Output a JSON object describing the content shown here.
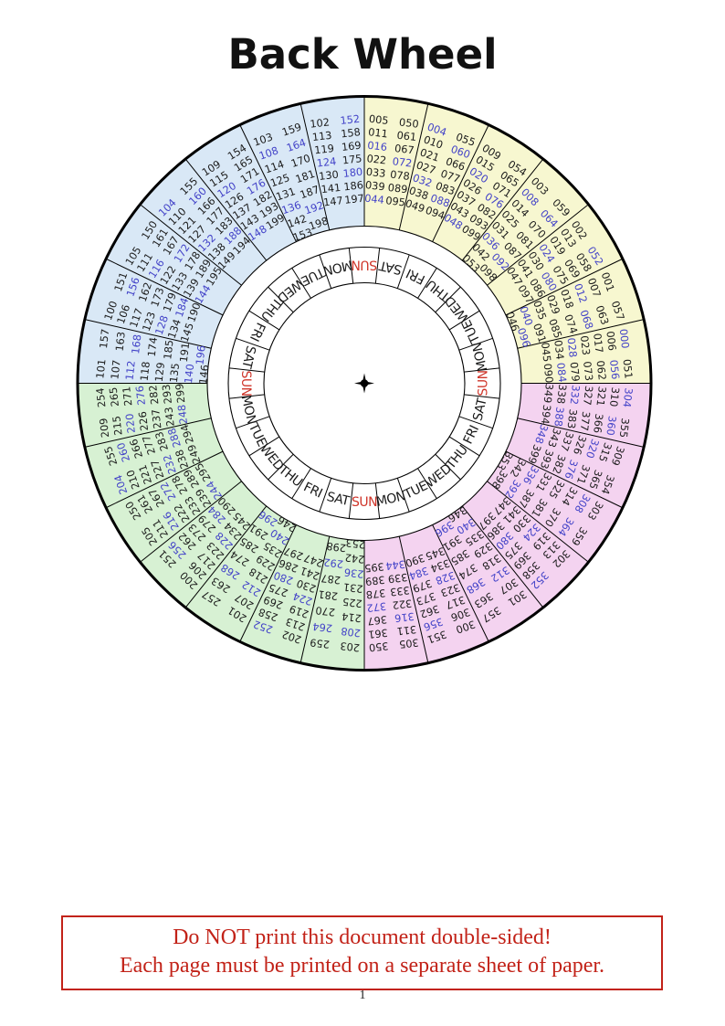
{
  "page": {
    "title": "Back Wheel",
    "page_number": "1"
  },
  "warning": {
    "line1": "Do NOT print this document double-sided!",
    "line2": "Each page must be printed on a separate sheet of paper.",
    "color": "#c22218"
  },
  "wheel": {
    "colors": {
      "yellow": "#f7f7d0",
      "pink": "#f4d3f0",
      "green": "#d7f1d3",
      "blue": "#d9e8f6",
      "number": "#1c1c1c",
      "leap_year": "#4343c8",
      "sunday": "#cf352a",
      "weekday": "#1a1a1a",
      "line": "#000000"
    },
    "day_ring_clockwise_from_top": [
      "SUN",
      "SAT",
      "FRI",
      "THU",
      "WED",
      "TUE",
      "MON",
      "SUN",
      "SAT",
      "FRI",
      "THU",
      "WED",
      "TUE",
      "MON",
      "SUN",
      "SAT",
      "FRI",
      "THU",
      "WED",
      "TUE",
      "MON",
      "SUN",
      "SAT",
      "FRI",
      "THU",
      "WED",
      "TUE",
      "MON"
    ],
    "sectors_clockwise_from_top": [
      {
        "quadrant": "yellow",
        "numbers": [
          "005",
          "011",
          "016",
          "022",
          "033",
          "039",
          "044",
          "050",
          "061",
          "067",
          "072",
          "078",
          "089",
          "095"
        ]
      },
      {
        "quadrant": "yellow",
        "numbers": [
          "004",
          "010",
          "021",
          "027",
          "032",
          "038",
          "049",
          "055",
          "060",
          "066",
          "077",
          "083",
          "088",
          "094"
        ]
      },
      {
        "quadrant": "yellow",
        "numbers": [
          "009",
          "015",
          "020",
          "026",
          "037",
          "043",
          "048",
          "054",
          "065",
          "071",
          "076",
          "082",
          "093",
          "099"
        ]
      },
      {
        "quadrant": "yellow",
        "numbers": [
          "003",
          "008",
          "014",
          "025",
          "031",
          "036",
          "042",
          "053",
          "059",
          "064",
          "070",
          "081",
          "087",
          "092",
          "098"
        ]
      },
      {
        "quadrant": "yellow",
        "numbers": [
          "002",
          "013",
          "019",
          "024",
          "030",
          "041",
          "047",
          "052",
          "058",
          "069",
          "075",
          "080",
          "086",
          "097"
        ]
      },
      {
        "quadrant": "yellow",
        "numbers": [
          "001",
          "007",
          "012",
          "018",
          "029",
          "035",
          "040",
          "046",
          "057",
          "063",
          "068",
          "074",
          "085",
          "091",
          "096"
        ]
      },
      {
        "quadrant": "yellow",
        "numbers": [
          "000",
          "006",
          "017",
          "023",
          "028",
          "034",
          "045",
          "051",
          "056",
          "062",
          "073",
          "079",
          "084",
          "090"
        ]
      },
      {
        "quadrant": "pink",
        "numbers": [
          "304",
          "310",
          "321",
          "327",
          "332",
          "338",
          "349",
          "355",
          "360",
          "366",
          "377",
          "383",
          "388",
          "394"
        ]
      },
      {
        "quadrant": "pink",
        "numbers": [
          "309",
          "315",
          "320",
          "326",
          "337",
          "343",
          "348",
          "354",
          "365",
          "371",
          "376",
          "382",
          "393",
          "399"
        ]
      },
      {
        "quadrant": "pink",
        "numbers": [
          "303",
          "308",
          "314",
          "325",
          "331",
          "336",
          "342",
          "353",
          "359",
          "364",
          "370",
          "381",
          "387",
          "392",
          "398"
        ]
      },
      {
        "quadrant": "pink",
        "numbers": [
          "302",
          "313",
          "319",
          "324",
          "330",
          "341",
          "347",
          "352",
          "358",
          "369",
          "375",
          "380",
          "386",
          "397"
        ]
      },
      {
        "quadrant": "pink",
        "numbers": [
          "301",
          "307",
          "312",
          "318",
          "329",
          "335",
          "340",
          "346",
          "357",
          "363",
          "368",
          "374",
          "385",
          "391",
          "396"
        ]
      },
      {
        "quadrant": "pink",
        "numbers": [
          "300",
          "306",
          "317",
          "323",
          "328",
          "334",
          "345",
          "351",
          "356",
          "362",
          "373",
          "379",
          "384",
          "390"
        ]
      },
      {
        "quadrant": "pink",
        "numbers": [
          "305",
          "311",
          "316",
          "322",
          "333",
          "339",
          "344",
          "350",
          "361",
          "367",
          "372",
          "378",
          "389",
          "395"
        ]
      },
      {
        "quadrant": "green",
        "numbers": [
          "203",
          "208",
          "214",
          "225",
          "231",
          "236",
          "242",
          "253",
          "259",
          "264",
          "270",
          "281",
          "287",
          "292",
          "298"
        ]
      },
      {
        "quadrant": "green",
        "numbers": [
          "202",
          "213",
          "219",
          "224",
          "230",
          "241",
          "247",
          "252",
          "258",
          "269",
          "275",
          "280",
          "286",
          "297"
        ]
      },
      {
        "quadrant": "green",
        "numbers": [
          "201",
          "207",
          "212",
          "218",
          "229",
          "235",
          "240",
          "246",
          "257",
          "263",
          "268",
          "274",
          "285",
          "291",
          "296"
        ]
      },
      {
        "quadrant": "green",
        "numbers": [
          "200",
          "206",
          "217",
          "223",
          "228",
          "234",
          "245",
          "251",
          "256",
          "262",
          "273",
          "279",
          "284",
          "290"
        ]
      },
      {
        "quadrant": "green",
        "numbers": [
          "205",
          "211",
          "216",
          "222",
          "233",
          "239",
          "244",
          "250",
          "261",
          "267",
          "272",
          "278",
          "289",
          "295"
        ]
      },
      {
        "quadrant": "green",
        "numbers": [
          "204",
          "210",
          "221",
          "227",
          "232",
          "238",
          "249",
          "255",
          "260",
          "266",
          "277",
          "283",
          "288",
          "294"
        ]
      },
      {
        "quadrant": "green",
        "numbers": [
          "209",
          "215",
          "220",
          "226",
          "237",
          "243",
          "248",
          "254",
          "265",
          "271",
          "276",
          "282",
          "293",
          "299"
        ]
      },
      {
        "quadrant": "blue",
        "numbers": [
          "101",
          "107",
          "112",
          "118",
          "129",
          "135",
          "140",
          "146",
          "157",
          "163",
          "168",
          "174",
          "185",
          "191",
          "196"
        ]
      },
      {
        "quadrant": "blue",
        "numbers": [
          "100",
          "106",
          "117",
          "123",
          "128",
          "134",
          "145",
          "151",
          "156",
          "162",
          "173",
          "179",
          "184",
          "190"
        ]
      },
      {
        "quadrant": "blue",
        "numbers": [
          "105",
          "111",
          "116",
          "122",
          "133",
          "139",
          "144",
          "150",
          "161",
          "167",
          "172",
          "178",
          "189",
          "195"
        ]
      },
      {
        "quadrant": "blue",
        "numbers": [
          "104",
          "110",
          "121",
          "127",
          "132",
          "138",
          "149",
          "155",
          "160",
          "166",
          "177",
          "183",
          "188",
          "194"
        ]
      },
      {
        "quadrant": "blue",
        "numbers": [
          "109",
          "115",
          "120",
          "126",
          "137",
          "143",
          "148",
          "154",
          "165",
          "171",
          "176",
          "182",
          "193",
          "199"
        ]
      },
      {
        "quadrant": "blue",
        "numbers": [
          "103",
          "108",
          "114",
          "125",
          "131",
          "136",
          "142",
          "153",
          "159",
          "164",
          "170",
          "181",
          "187",
          "192",
          "198"
        ]
      },
      {
        "quadrant": "blue",
        "numbers": [
          "102",
          "113",
          "119",
          "124",
          "130",
          "141",
          "147",
          "152",
          "158",
          "169",
          "175",
          "180",
          "186",
          "197"
        ]
      }
    ]
  }
}
